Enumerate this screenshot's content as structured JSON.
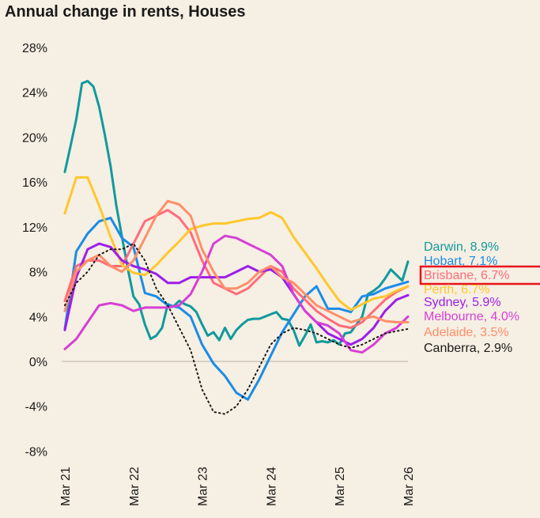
{
  "chart_data": {
    "type": "line",
    "title": "Annual change in rents, Houses",
    "xlabel": "",
    "ylabel": "",
    "x_ticks": [
      "Mar 21",
      "Mar 22",
      "Mar 23",
      "Mar 24",
      "Mar 25",
      "Mar 26"
    ],
    "x_range_months": [
      0,
      60
    ],
    "y_ticks": [
      "28%",
      "24%",
      "20%",
      "16%",
      "12%",
      "8%",
      "4%",
      "0%",
      "-4%",
      "-8%"
    ],
    "y_tick_values": [
      28,
      24,
      20,
      16,
      12,
      8,
      4,
      0,
      -4,
      -8
    ],
    "ylim": [
      -8,
      28
    ],
    "grid": false,
    "legend_placement": "right (end-of-line labels)",
    "highlighted": "Brisbane",
    "series": [
      {
        "name": "Darwin",
        "label": "Darwin, 8.9%",
        "color": "#0f9a9e",
        "dash": false,
        "values": [
          16.9,
          19.2,
          21.6,
          24.8,
          25,
          24.5,
          22.7,
          20.2,
          17.4,
          13.9,
          11.1,
          8.3,
          5.8,
          5.1,
          3.3,
          2.0,
          2.3,
          3.0,
          5.1,
          4.9,
          5.4,
          5.1,
          4.9,
          4.4,
          3.3,
          2.3,
          2.6,
          1.9,
          3.0,
          2.0,
          2.8,
          3.3,
          3.7,
          3.8,
          3.8,
          4.0,
          4.2,
          4.4,
          3.8,
          3.7,
          2.8,
          1.4,
          2.3,
          3.3,
          1.7,
          1.8,
          1.7,
          1.9,
          1.5,
          2.5,
          2.6,
          3.3,
          4.0,
          6.0,
          6.3,
          6.7,
          7.4,
          8.2,
          7.7,
          7.2,
          8.9
        ]
      },
      {
        "name": "Hobart",
        "label": "Hobart, 7.1%",
        "color": "#1a8ce8",
        "dash": false,
        "values": [
          2.9,
          9.8,
          11.4,
          12.5,
          12.8,
          11.0,
          10.2,
          6.1,
          5.8,
          5.0,
          4.8,
          4.0,
          1.5,
          -0.2,
          -1.3,
          -2.8,
          -3.4,
          -1.6,
          0.5,
          2.6,
          4.2,
          5.8,
          6.7,
          4.7,
          4.7,
          4.4,
          5.8,
          6.0,
          6.5,
          6.8,
          7.1
        ]
      },
      {
        "name": "Brisbane",
        "label": "Brisbane, 6.7%",
        "color": "#ff6b7a",
        "dash": false,
        "values": [
          5.4,
          8.5,
          9.0,
          9.0,
          8.5,
          8.5,
          10.5,
          12.5,
          13.0,
          13.5,
          12.8,
          11.5,
          9.0,
          7.0,
          6.5,
          6.0,
          6.5,
          7.5,
          8.5,
          8.0,
          6.5,
          5.5,
          4.5,
          3.8,
          3.2,
          3.0,
          3.5,
          4.5,
          5.5,
          6.2,
          6.7
        ]
      },
      {
        "name": "Perth",
        "label": "Perth, 6.7%",
        "color": "#ffc72c",
        "dash": false,
        "values": [
          13.2,
          16.4,
          16.4,
          13.9,
          11.1,
          8.6,
          7.9,
          7.7,
          8.6,
          9.7,
          10.7,
          11.8,
          12.1,
          12.3,
          12.3,
          12.5,
          12.7,
          12.8,
          13.3,
          12.8,
          11.1,
          9.7,
          8.3,
          6.8,
          5.4,
          4.6,
          5.1,
          5.6,
          5.8,
          6.3,
          6.7
        ]
      },
      {
        "name": "Sydney",
        "label": "Sydney, 5.9%",
        "color": "#9b1fe8",
        "dash": false,
        "values": [
          2.8,
          7.5,
          10.0,
          10.5,
          10.2,
          9.0,
          8.5,
          8.2,
          7.8,
          7.0,
          7.0,
          7.5,
          7.5,
          7.5,
          7.5,
          8.0,
          8.5,
          8.0,
          8.2,
          7.5,
          6.0,
          4.5,
          3.5,
          2.5,
          2.0,
          1.5,
          2.0,
          3.0,
          4.5,
          5.5,
          5.9
        ]
      },
      {
        "name": "Melbourne",
        "label": "Melbourne, 4.0%",
        "color": "#d63fd6",
        "dash": false,
        "values": [
          1.1,
          2.0,
          3.5,
          5.0,
          5.2,
          5.0,
          4.5,
          4.8,
          4.8,
          4.8,
          5.0,
          6.0,
          8.0,
          10.5,
          11.2,
          11.0,
          10.5,
          10.0,
          9.5,
          8.5,
          6.0,
          4.5,
          3.5,
          3.2,
          2.5,
          1.0,
          0.8,
          1.5,
          2.5,
          3.0,
          4.0
        ]
      },
      {
        "name": "Adelaide",
        "label": "Adelaide, 3.5%",
        "color": "#ff8e6a",
        "dash": false,
        "values": [
          4.5,
          8.0,
          9.0,
          9.5,
          8.5,
          8.0,
          9.0,
          11.0,
          13.0,
          14.3,
          14.0,
          13.0,
          10.0,
          8.0,
          6.5,
          6.5,
          7.0,
          8.0,
          8.5,
          7.5,
          7.0,
          6.0,
          5.0,
          4.5,
          4.0,
          3.5,
          3.8,
          4.0,
          3.6,
          3.5,
          3.5
        ]
      },
      {
        "name": "Canberra",
        "label": "Canberra, 2.9%",
        "color": "#1a1a1a",
        "dash": true,
        "values": [
          5.0,
          7.0,
          8.0,
          9.5,
          10.0,
          10.0,
          10.5,
          9.0,
          6.5,
          5.0,
          3.0,
          1.0,
          -2.5,
          -4.5,
          -4.7,
          -4.0,
          -2.5,
          -0.5,
          1.5,
          2.5,
          3.0,
          2.8,
          2.5,
          2.0,
          1.5,
          1.2,
          1.5,
          2.0,
          2.5,
          2.7,
          2.9
        ]
      }
    ]
  }
}
